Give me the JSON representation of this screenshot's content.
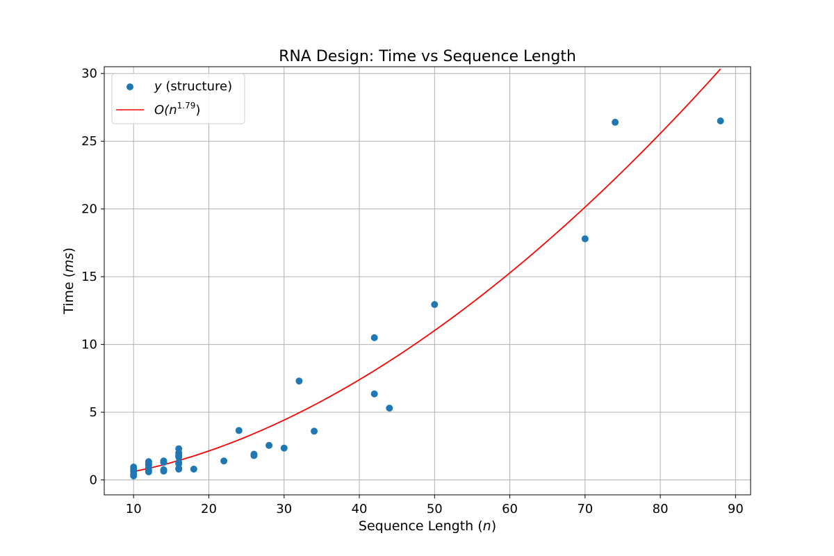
{
  "chart_data": {
    "type": "scatter",
    "title": "RNA Design: Time vs Sequence Length",
    "xlabel": {
      "prefix": "Sequence Length (",
      "var": "n",
      "suffix": ")"
    },
    "ylabel": {
      "prefix": "Time (",
      "var": "ms",
      "suffix": ")"
    },
    "xlim": [
      6.1,
      92.0
    ],
    "ylim": [
      -1.1,
      30.5
    ],
    "xticks": [
      10,
      20,
      30,
      40,
      50,
      60,
      70,
      80,
      90
    ],
    "yticks": [
      0,
      5,
      10,
      15,
      20,
      25,
      30
    ],
    "grid": true,
    "legend": {
      "placement": "top-left",
      "entries": [
        {
          "kind": "marker",
          "var": "y",
          "text": " (structure)"
        },
        {
          "kind": "line",
          "base": "O(",
          "var": "n",
          "exponent": "1.79",
          "suffix": ")"
        }
      ]
    },
    "series": [
      {
        "kind": "scatter",
        "color": "#1f77b4",
        "points": [
          [
            10,
            0.3
          ],
          [
            10,
            0.4
          ],
          [
            10,
            0.6
          ],
          [
            10,
            0.8
          ],
          [
            10,
            0.95
          ],
          [
            12,
            0.6
          ],
          [
            12,
            0.7
          ],
          [
            12,
            0.9
          ],
          [
            12,
            1.1
          ],
          [
            12,
            1.2
          ],
          [
            12,
            1.35
          ],
          [
            14,
            0.65
          ],
          [
            14,
            0.75
          ],
          [
            14,
            1.3
          ],
          [
            14,
            1.4
          ],
          [
            16,
            0.8
          ],
          [
            16,
            0.85
          ],
          [
            16,
            1.2
          ],
          [
            16,
            1.3
          ],
          [
            16,
            1.7
          ],
          [
            16,
            1.8
          ],
          [
            16,
            2.0
          ],
          [
            16,
            2.3
          ],
          [
            18,
            0.8
          ],
          [
            22,
            1.4
          ],
          [
            24,
            3.65
          ],
          [
            26,
            1.8
          ],
          [
            26,
            1.9
          ],
          [
            28,
            2.55
          ],
          [
            30,
            2.35
          ],
          [
            32,
            7.3
          ],
          [
            34,
            3.6
          ],
          [
            42,
            10.5
          ],
          [
            42,
            6.35
          ],
          [
            44,
            5.3
          ],
          [
            50,
            12.95
          ],
          [
            70,
            17.8
          ],
          [
            74,
            26.4
          ],
          [
            88,
            26.5
          ]
        ]
      },
      {
        "kind": "line",
        "color": "#ff0000",
        "exponent": 1.79,
        "coefficient": 0.01003,
        "x_range": [
          10,
          88
        ]
      }
    ]
  }
}
